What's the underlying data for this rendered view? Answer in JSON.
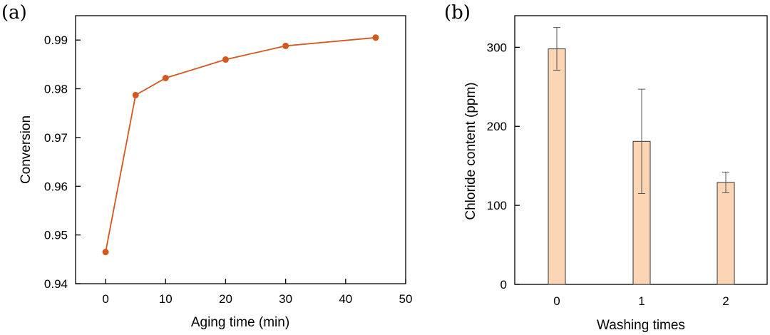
{
  "chart_data": [
    {
      "panel_label": "(a)",
      "type": "line",
      "title": "",
      "xlabel": "Aging time (min)",
      "ylabel": "Conversion",
      "xlim": [
        -5,
        50
      ],
      "ylim": [
        0.94,
        0.995
      ],
      "xticks": [
        0,
        10,
        20,
        30,
        40,
        50
      ],
      "yticks": [
        0.94,
        0.95,
        0.96,
        0.97,
        0.98,
        0.99
      ],
      "xtick_labels": [
        "0",
        "10",
        "20",
        "30",
        "40",
        "50"
      ],
      "ytick_labels": [
        "0.94",
        "0.95",
        "0.96",
        "0.97",
        "0.98",
        "0.99"
      ],
      "series": [
        {
          "name": "Conversion",
          "color": "#d2581f",
          "x": [
            0,
            5,
            10,
            20,
            30,
            45
          ],
          "y": [
            0.9465,
            0.9787,
            0.9822,
            0.986,
            0.9888,
            0.9905
          ]
        }
      ],
      "grid": false
    },
    {
      "panel_label": "(b)",
      "type": "bar",
      "title": "",
      "xlabel": "Washing times",
      "ylabel": "Chloride content (ppm)",
      "categories": [
        "0",
        "1",
        "2"
      ],
      "values": [
        298,
        181,
        129
      ],
      "errors": [
        27,
        66,
        13
      ],
      "ylim": [
        0,
        340
      ],
      "yticks": [
        0,
        100,
        200,
        300
      ],
      "ytick_labels": [
        "0",
        "100",
        "200",
        "300"
      ],
      "bar_color": "#fcd5b4",
      "grid": false
    }
  ]
}
